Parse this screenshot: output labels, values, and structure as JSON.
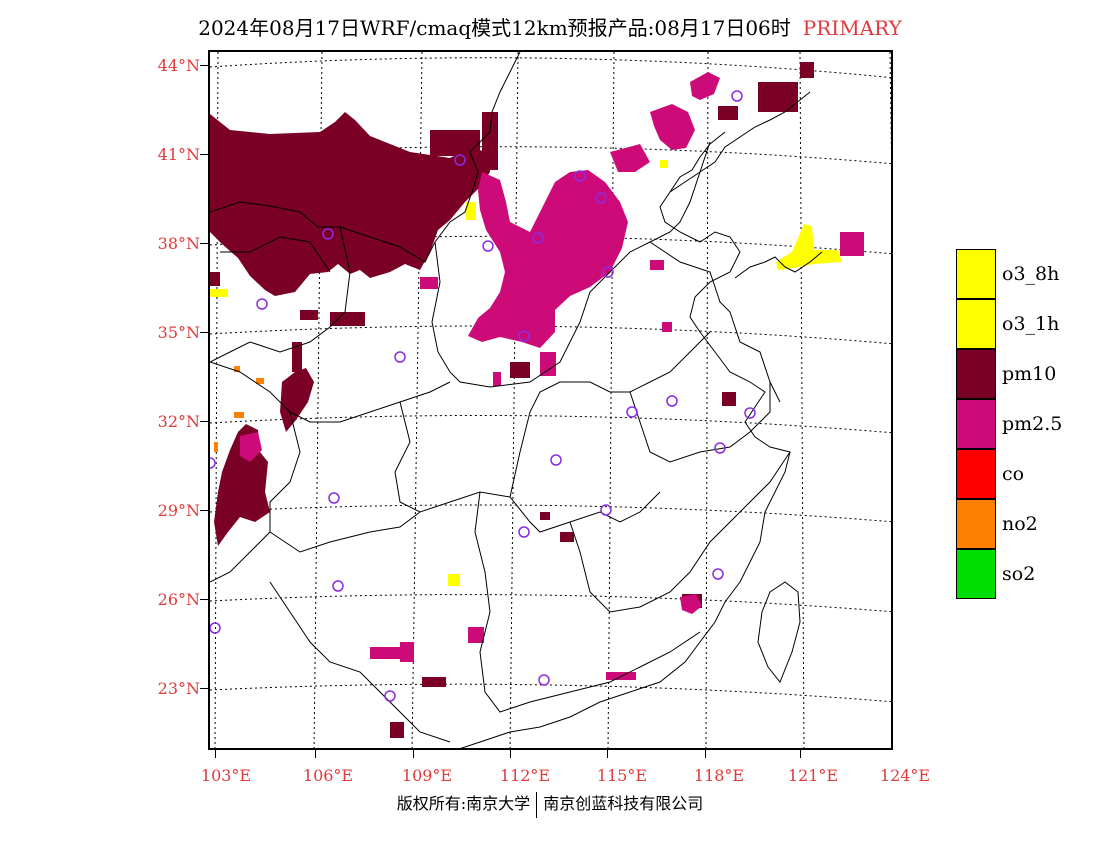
{
  "header": {
    "title": "2024年08月17日WRF/cmaq模式12km预报产品:08月17日06时",
    "tag": "PRIMARY"
  },
  "axes": {
    "lat_labels": [
      "44°N",
      "41°N",
      "38°N",
      "35°N",
      "32°N",
      "29°N",
      "26°N",
      "23°N"
    ],
    "lon_labels": [
      "103°E",
      "106°E",
      "109°E",
      "112°E",
      "115°E",
      "118°E",
      "121°E",
      "124°E"
    ]
  },
  "legend": {
    "items": [
      {
        "label": "o3_8h",
        "color": "#ffff00"
      },
      {
        "label": "o3_1h",
        "color": "#ffff00"
      },
      {
        "label": "pm10",
        "color": "#7a0026"
      },
      {
        "label": "pm2.5",
        "color": "#cc0a78"
      },
      {
        "label": "co",
        "color": "#ff0000"
      },
      {
        "label": "no2",
        "color": "#ff7f00"
      },
      {
        "label": "so2",
        "color": "#00dd00"
      }
    ]
  },
  "footer": {
    "left": "版权所有:南京大学",
    "right": "南京创蓝科技有限公司"
  }
}
